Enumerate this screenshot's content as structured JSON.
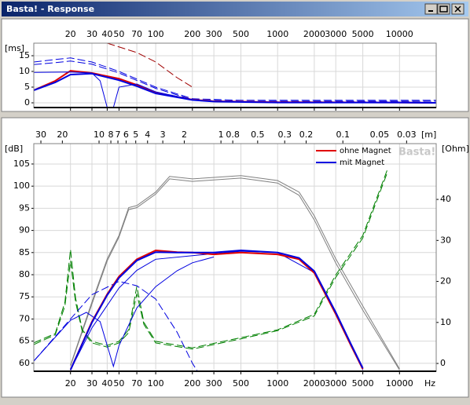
{
  "window": {
    "title": "Basta! - Response"
  },
  "chart_data": [
    {
      "type": "line",
      "y_label": "[ms]",
      "xlim": [
        10,
        20000
      ],
      "log_x": true,
      "xticks": [
        20,
        30,
        40,
        50,
        70,
        100,
        200,
        300,
        500,
        1000,
        2000,
        3000,
        5000,
        10000
      ],
      "ylim": [
        -1.5,
        19
      ],
      "yticks": [
        0,
        5,
        10,
        15
      ],
      "grid": true,
      "series": [
        {
          "color": "#a00000",
          "dash": true,
          "x": [
            40,
            70,
            100,
            150,
            200
          ],
          "values": [
            19,
            16,
            13,
            8,
            5
          ]
        },
        {
          "color": "#0000e0",
          "dash": true,
          "x": [
            10,
            15,
            20,
            30,
            50,
            100,
            200,
            500,
            10000,
            20000
          ],
          "values": [
            13,
            13.8,
            14.3,
            13,
            10,
            5,
            1.3,
            0.8,
            0.8,
            0.8
          ]
        },
        {
          "color": "#0000e0",
          "dash": true,
          "x": [
            10,
            15,
            20,
            30,
            50,
            100,
            200,
            500,
            10000,
            20000
          ],
          "values": [
            12.2,
            12.8,
            13.3,
            12.3,
            9.5,
            4.6,
            1,
            0.5,
            0.5,
            0.5
          ]
        },
        {
          "color": "#e00000",
          "width": 2,
          "x": [
            10,
            15,
            20,
            30,
            50,
            70,
            100,
            200,
            300,
            1000,
            10000,
            20000
          ],
          "values": [
            4,
            7,
            10.2,
            9.5,
            7.7,
            5.7,
            3.2,
            1,
            0.5,
            0.2,
            0.1,
            0
          ]
        },
        {
          "color": "#0000e0",
          "width": 2,
          "x": [
            10,
            15,
            20,
            30,
            50,
            70,
            100,
            200,
            300,
            1000,
            10000,
            20000
          ],
          "values": [
            4,
            6.5,
            9,
            9.3,
            7.2,
            5.3,
            3,
            0.9,
            0.4,
            0.1,
            0.1,
            0
          ]
        },
        {
          "color": "#0000e0",
          "x": [
            10,
            20,
            30,
            35,
            40,
            45,
            50,
            70,
            100,
            200
          ],
          "values": [
            9.7,
            9.8,
            9.5,
            7,
            -1.5,
            -1.5,
            5,
            6,
            3.5,
            1
          ]
        }
      ]
    },
    {
      "type": "line",
      "y_label": "[dB]",
      "y2_label": "[Ohm]",
      "x2_label": "[m]",
      "x_unit": "Hz",
      "watermark": "Basta!",
      "xlim": [
        10,
        20000
      ],
      "log_x": true,
      "xticks": [
        20,
        30,
        40,
        50,
        70,
        100,
        200,
        300,
        500,
        1000,
        2000,
        3000,
        5000,
        10000
      ],
      "x2lim": [
        34.3,
        0.01715
      ],
      "x2ticks": [
        30,
        20,
        10,
        8,
        7,
        6,
        5,
        4,
        3,
        2,
        1,
        0.8,
        0.5,
        0.3,
        0.2,
        0.1,
        0.05,
        0.03
      ],
      "ylim": [
        58.2,
        109.6
      ],
      "yticks": [
        60,
        65,
        70,
        75,
        80,
        85,
        90,
        95,
        100,
        105
      ],
      "y2lim": [
        -1.9,
        53.6
      ],
      "y2ticks": [
        0,
        10,
        20,
        30,
        40
      ],
      "grid": true,
      "legend": "top-right",
      "series": [
        {
          "color": "#808080",
          "axis": "y2",
          "x": [
            20,
            30,
            40,
            50,
            60,
            70,
            100,
            130,
            200,
            500,
            1000,
            1500,
            2000,
            3000,
            5000,
            10000
          ],
          "values": [
            -0.4,
            15,
            25.5,
            31.2,
            38,
            38.5,
            41.8,
            45.6,
            45,
            45.8,
            44.6,
            41.8,
            36,
            25.5,
            14,
            -1.3
          ]
        },
        {
          "color": "#808080",
          "axis": "y2",
          "x": [
            20,
            30,
            40,
            50,
            60,
            70,
            100,
            130,
            200,
            500,
            1000,
            1500,
            2000,
            3000,
            5000,
            10000
          ],
          "values": [
            -0.6,
            14.5,
            25,
            30.8,
            37.5,
            38,
            41.3,
            45,
            44.4,
            45.2,
            44,
            41,
            35,
            24.5,
            13,
            -1.6
          ]
        },
        {
          "color": "#008000",
          "dash": true,
          "axis": "y2",
          "x": [
            10,
            15,
            18,
            20,
            22,
            25,
            30,
            40,
            50,
            60,
            70,
            80,
            100,
            200,
            500,
            1000,
            2000,
            3000,
            5000,
            8000
          ],
          "values": [
            5,
            7.3,
            15,
            27.8,
            16,
            8.2,
            5.4,
            4.4,
            5.4,
            8.2,
            18.8,
            10,
            5.4,
            3.8,
            6.3,
            8.2,
            12,
            21.6,
            31.2,
            47.5
          ]
        },
        {
          "color": "#008000",
          "dash": true,
          "axis": "y2",
          "x": [
            10,
            15,
            18,
            20,
            22,
            25,
            30,
            40,
            50,
            60,
            70,
            80,
            100,
            200,
            500,
            1000,
            2000,
            3000,
            5000,
            8000
          ],
          "values": [
            4.6,
            7,
            14,
            25,
            15,
            7.8,
            5,
            4,
            5,
            7.5,
            17,
            9.5,
            5,
            3.5,
            6,
            8,
            11.6,
            21,
            30.6,
            46.8
          ]
        },
        {
          "color": "#0000e0",
          "dash": true,
          "x": [
            10,
            20,
            30,
            50,
            70,
            100,
            150,
            200,
            220
          ],
          "values": [
            60.5,
            70,
            75.5,
            78.5,
            77.5,
            74.5,
            67,
            60,
            58.2
          ]
        },
        {
          "color": "#0000e0",
          "x": [
            10,
            20,
            27,
            35,
            45,
            50,
            70,
            100,
            150,
            200,
            300
          ],
          "values": [
            60.5,
            69.7,
            71.5,
            69.4,
            59.3,
            64,
            72.5,
            77.3,
            80.9,
            82.7,
            84
          ]
        },
        {
          "color": "#0000e0",
          "x": [
            20,
            30,
            50,
            70,
            100,
            200,
            500,
            1000,
            2000,
            3000,
            5000
          ],
          "values": [
            58.5,
            68,
            77,
            81,
            83.5,
            84.3,
            85.3,
            85,
            80.5,
            71,
            58.5
          ]
        },
        {
          "name": "ohne Magnet",
          "color": "#e00000",
          "width": 2,
          "x": [
            20,
            30,
            40,
            50,
            70,
            100,
            150,
            200,
            300,
            500,
            1000,
            1500,
            2000,
            3000,
            4000,
            5000
          ],
          "values": [
            58.5,
            69.4,
            75.6,
            79.6,
            83.5,
            85.5,
            85.1,
            85,
            84.6,
            85,
            84.6,
            83.5,
            80.4,
            71.1,
            64,
            58.7
          ]
        },
        {
          "name": "mit Magnet",
          "color": "#0000e0",
          "width": 2,
          "x": [
            20,
            30,
            40,
            50,
            70,
            100,
            150,
            200,
            300,
            500,
            1000,
            1500,
            2000,
            3000,
            4000,
            5000
          ],
          "values": [
            58.5,
            69.2,
            75.4,
            79.3,
            83.2,
            85.1,
            85,
            85,
            85,
            85.5,
            85,
            83.8,
            80.8,
            71.5,
            64.3,
            58.9
          ]
        }
      ]
    }
  ]
}
